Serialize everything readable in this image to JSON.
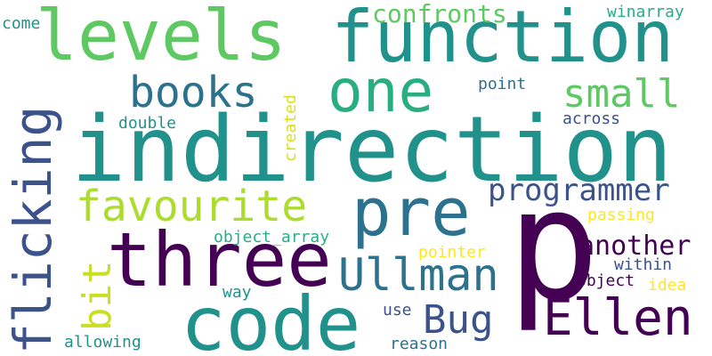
{
  "palette": {
    "background": "#ffffff",
    "dark_purple": "#440154",
    "indigo": "#3b528b",
    "blue_teal": "#2c728e",
    "teal": "#21918c",
    "green_teal": "#28ae80",
    "green": "#5ec962",
    "lime": "#addc30",
    "yellow": "#fde725"
  },
  "words": {
    "p": "p",
    "indirection": "indirection",
    "function": "function",
    "three": "three",
    "code": "code",
    "levels": "levels",
    "one": "one",
    "pre": "pre",
    "flicking": "flicking",
    "Ellen": "Ellen",
    "Ullman": "Ullman",
    "favourite": "favourite",
    "books": "books",
    "Bug": "Bug",
    "small": "small",
    "programmer": "programmer",
    "bit": "bit",
    "another": "another",
    "confronts": "confronts",
    "winarray": "winarray",
    "come": "come",
    "point": "point",
    "across": "across",
    "double": "double",
    "created": "created",
    "passing": "passing",
    "object_array": "object_array",
    "pointer": "pointer",
    "within": "within",
    "way": "way",
    "object": "object",
    "idea": "idea",
    "use": "use",
    "allowing": "allowing",
    "reason": "reason"
  }
}
